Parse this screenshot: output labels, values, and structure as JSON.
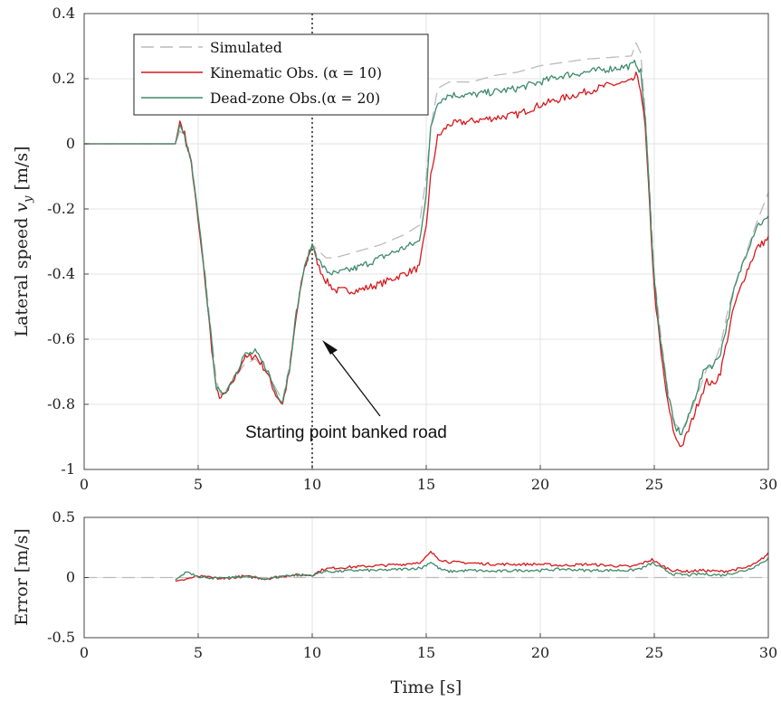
{
  "chart_data": [
    {
      "type": "line",
      "title": "",
      "xlabel": "",
      "ylabel": "Lateral speed v_y [m/s]",
      "xlim": [
        0,
        30
      ],
      "ylim": [
        -1,
        0.4
      ],
      "xticks": [
        0,
        5,
        10,
        15,
        20,
        25,
        30
      ],
      "yticks": [
        0.4,
        0.2,
        0,
        -0.2,
        -0.4,
        -0.6,
        -0.8,
        -1
      ],
      "ytick_labels": [
        "0.4",
        "0.2",
        "0",
        "-0.2",
        "-0.4",
        "-0.6",
        "-0.8",
        "-1"
      ],
      "grid": true,
      "legend_position": "top-left",
      "legend": [
        "Simulated",
        "Kinematic Obs. (α = 10)",
        "Dead-zone Obs.(α = 20)"
      ],
      "annotation": {
        "text": "Starting point banked road",
        "x": 10
      },
      "series": [
        {
          "name": "Simulated",
          "color": "#bbbbbb",
          "style": "dashed",
          "x": [
            0,
            4.0,
            4.2,
            4.4,
            4.7,
            5.0,
            5.3,
            5.6,
            5.8,
            6.0,
            6.3,
            6.6,
            7.0,
            7.5,
            8.0,
            8.4,
            8.7,
            9.0,
            9.3,
            9.6,
            9.8,
            10.0,
            10.3,
            10.6,
            11.0,
            12.0,
            13.0,
            14.0,
            14.7,
            15.0,
            15.2,
            15.5,
            16.0,
            17.0,
            18.0,
            19.0,
            20.0,
            21.0,
            22.0,
            23.0,
            24.0,
            24.2,
            24.4,
            24.6,
            24.8,
            25.0,
            25.3,
            25.6,
            25.9,
            26.2,
            26.5,
            27.0,
            27.3,
            27.6,
            27.9,
            28.2,
            28.5,
            29.0,
            29.5,
            30.0
          ],
          "values": [
            0,
            0,
            0.04,
            0.02,
            -0.05,
            -0.22,
            -0.4,
            -0.6,
            -0.73,
            -0.77,
            -0.75,
            -0.72,
            -0.68,
            -0.66,
            -0.7,
            -0.75,
            -0.79,
            -0.68,
            -0.52,
            -0.4,
            -0.34,
            -0.31,
            -0.33,
            -0.35,
            -0.35,
            -0.33,
            -0.31,
            -0.28,
            -0.25,
            -0.1,
            0.05,
            0.17,
            0.19,
            0.19,
            0.21,
            0.22,
            0.24,
            0.25,
            0.26,
            0.265,
            0.27,
            0.31,
            0.28,
            0.1,
            -0.15,
            -0.4,
            -0.6,
            -0.76,
            -0.86,
            -0.88,
            -0.84,
            -0.75,
            -0.69,
            -0.68,
            -0.62,
            -0.52,
            -0.44,
            -0.34,
            -0.24,
            -0.15
          ]
        },
        {
          "name": "Kinematic Obs. (α = 10)",
          "color": "#d7191c",
          "style": "solid",
          "x": [
            0,
            4.0,
            4.2,
            4.4,
            4.7,
            5.0,
            5.3,
            5.6,
            5.8,
            6.0,
            6.3,
            6.6,
            7.0,
            7.5,
            8.0,
            8.4,
            8.7,
            9.0,
            9.3,
            9.6,
            9.8,
            10.0,
            10.3,
            10.6,
            11.0,
            12.0,
            13.0,
            14.0,
            14.7,
            15.0,
            15.2,
            15.5,
            16.0,
            17.0,
            18.0,
            19.0,
            20.0,
            21.0,
            22.0,
            23.0,
            24.0,
            24.2,
            24.4,
            24.6,
            24.8,
            25.0,
            25.3,
            25.6,
            25.9,
            26.2,
            26.5,
            27.0,
            27.3,
            27.6,
            27.9,
            28.2,
            28.5,
            29.0,
            29.5,
            30.0
          ],
          "values": [
            0,
            0,
            0.07,
            0.03,
            -0.06,
            -0.24,
            -0.42,
            -0.63,
            -0.76,
            -0.78,
            -0.76,
            -0.72,
            -0.66,
            -0.65,
            -0.7,
            -0.77,
            -0.8,
            -0.7,
            -0.53,
            -0.4,
            -0.35,
            -0.31,
            -0.38,
            -0.42,
            -0.45,
            -0.45,
            -0.43,
            -0.4,
            -0.38,
            -0.25,
            -0.1,
            0.02,
            0.06,
            0.07,
            0.08,
            0.09,
            0.12,
            0.14,
            0.16,
            0.18,
            0.19,
            0.21,
            0.17,
            0.05,
            -0.2,
            -0.45,
            -0.65,
            -0.8,
            -0.9,
            -0.93,
            -0.88,
            -0.78,
            -0.73,
            -0.74,
            -0.7,
            -0.6,
            -0.5,
            -0.4,
            -0.32,
            -0.29
          ]
        },
        {
          "name": "Dead-zone Obs.(α = 20)",
          "color": "#3e8a6b",
          "style": "solid",
          "x": [
            0,
            4.0,
            4.2,
            4.4,
            4.7,
            5.0,
            5.3,
            5.6,
            5.8,
            6.0,
            6.3,
            6.6,
            7.0,
            7.5,
            8.0,
            8.4,
            8.7,
            9.0,
            9.3,
            9.6,
            9.8,
            10.0,
            10.3,
            10.6,
            11.0,
            12.0,
            13.0,
            14.0,
            14.7,
            15.0,
            15.2,
            15.5,
            16.0,
            17.0,
            18.0,
            19.0,
            20.0,
            21.0,
            22.0,
            23.0,
            24.0,
            24.2,
            24.4,
            24.6,
            24.8,
            25.0,
            25.3,
            25.6,
            25.9,
            26.2,
            26.5,
            27.0,
            27.3,
            27.6,
            27.9,
            28.2,
            28.5,
            29.0,
            29.5,
            30.0
          ],
          "values": [
            0,
            0,
            0.06,
            0.02,
            -0.06,
            -0.23,
            -0.41,
            -0.62,
            -0.75,
            -0.77,
            -0.75,
            -0.71,
            -0.65,
            -0.64,
            -0.69,
            -0.76,
            -0.79,
            -0.69,
            -0.52,
            -0.4,
            -0.35,
            -0.31,
            -0.36,
            -0.39,
            -0.4,
            -0.38,
            -0.35,
            -0.32,
            -0.3,
            -0.15,
            0.05,
            0.13,
            0.15,
            0.15,
            0.16,
            0.17,
            0.19,
            0.21,
            0.22,
            0.23,
            0.24,
            0.25,
            0.22,
            0.08,
            -0.17,
            -0.42,
            -0.62,
            -0.77,
            -0.87,
            -0.89,
            -0.84,
            -0.73,
            -0.68,
            -0.68,
            -0.64,
            -0.55,
            -0.45,
            -0.34,
            -0.25,
            -0.23
          ]
        }
      ]
    },
    {
      "type": "line",
      "title": "",
      "xlabel": "Time [s]",
      "ylabel": "Error [m/s]",
      "xlim": [
        0,
        30
      ],
      "ylim": [
        -0.5,
        0.5
      ],
      "xticks": [
        0,
        5,
        10,
        15,
        20,
        25,
        30
      ],
      "yticks": [
        0.5,
        0,
        -0.5
      ],
      "ytick_labels": [
        "0.5",
        "0",
        "-0.5"
      ],
      "grid": true,
      "series": [
        {
          "color": "#bbbbbb",
          "style": "dashed",
          "x": [
            0,
            30
          ],
          "values": [
            0,
            0
          ]
        },
        {
          "color": "#d7191c",
          "style": "solid",
          "x": [
            4.0,
            5.0,
            6.0,
            7.0,
            8.0,
            9.0,
            10.0,
            10.5,
            11.0,
            12.0,
            13.0,
            14.0,
            14.8,
            15.2,
            15.6,
            16.0,
            17.0,
            18.0,
            19.0,
            20.0,
            21.0,
            22.0,
            23.0,
            24.0,
            24.5,
            24.9,
            25.3,
            25.8,
            26.5,
            27.0,
            28.0,
            29.0,
            29.5,
            30.0
          ],
          "values": [
            -0.03,
            0.01,
            -0.01,
            0.01,
            -0.01,
            0.02,
            0.02,
            0.07,
            0.08,
            0.09,
            0.1,
            0.11,
            0.13,
            0.21,
            0.15,
            0.13,
            0.12,
            0.11,
            0.11,
            0.11,
            0.1,
            0.11,
            0.1,
            0.09,
            0.12,
            0.15,
            0.1,
            0.06,
            0.05,
            0.06,
            0.05,
            0.08,
            0.12,
            0.2
          ]
        },
        {
          "color": "#3e8a6b",
          "style": "solid",
          "x": [
            4.0,
            4.5,
            5.0,
            6.0,
            7.0,
            8.0,
            9.0,
            10.0,
            10.5,
            11.0,
            12.0,
            13.0,
            14.0,
            14.8,
            15.2,
            15.6,
            16.0,
            17.0,
            18.0,
            19.0,
            20.0,
            21.0,
            22.0,
            23.0,
            24.0,
            24.5,
            24.9,
            25.3,
            25.8,
            26.5,
            27.0,
            28.0,
            29.0,
            29.5,
            30.0
          ],
          "values": [
            -0.02,
            0.05,
            0.01,
            -0.01,
            0.01,
            -0.01,
            0.02,
            0.02,
            0.05,
            0.05,
            0.06,
            0.06,
            0.07,
            0.08,
            0.13,
            0.07,
            0.05,
            0.06,
            0.05,
            0.06,
            0.06,
            0.07,
            0.06,
            0.06,
            0.06,
            0.08,
            0.12,
            0.08,
            0.03,
            0.02,
            0.03,
            0.02,
            0.06,
            0.1,
            0.16
          ]
        }
      ]
    }
  ]
}
